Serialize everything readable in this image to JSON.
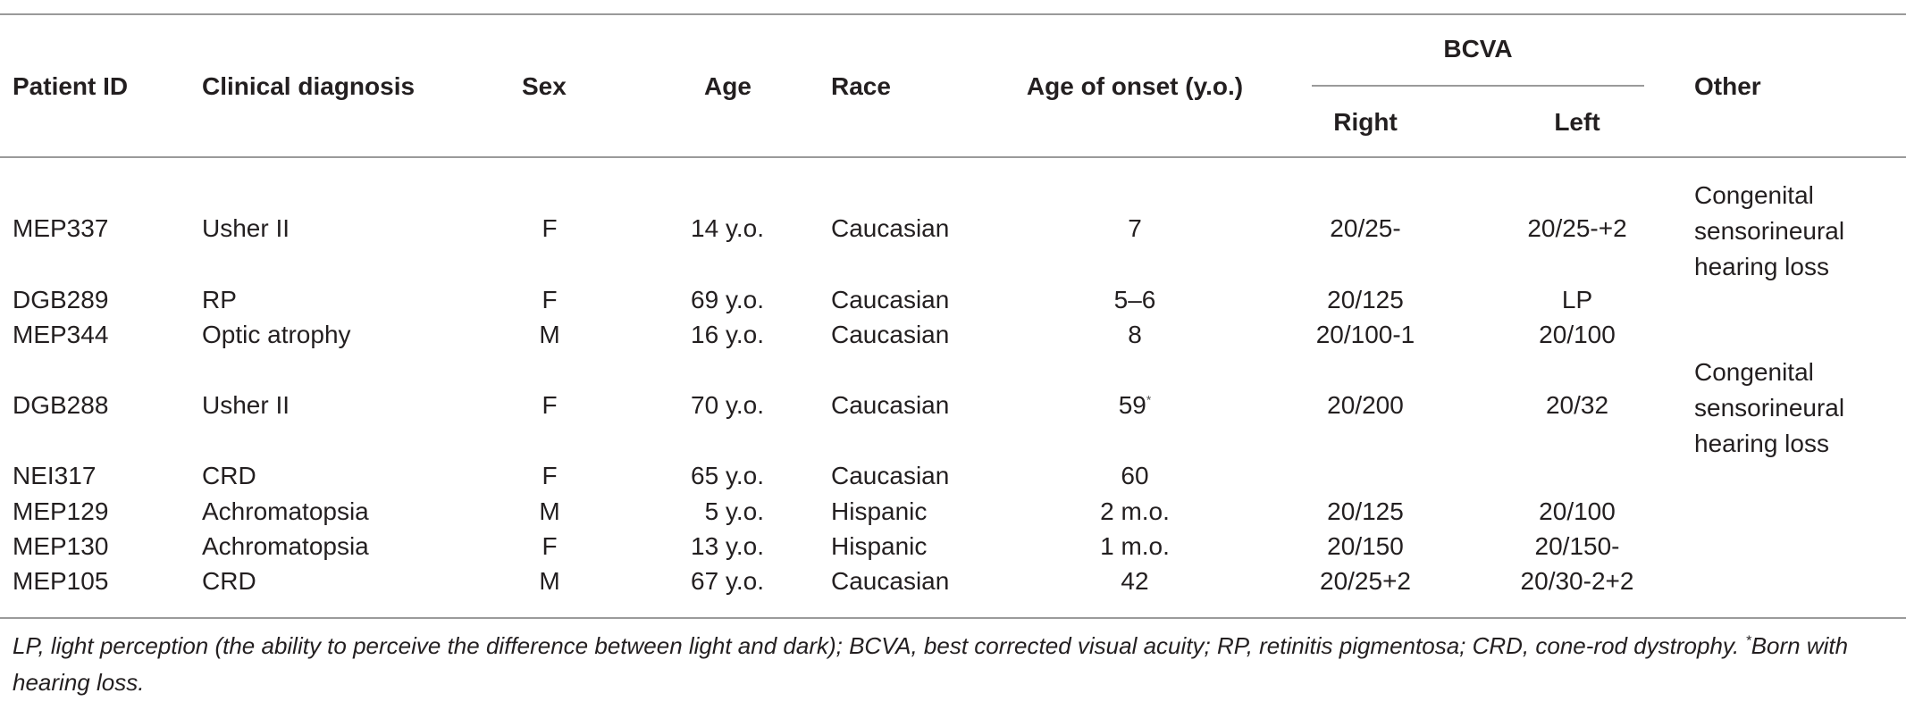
{
  "table": {
    "headers": {
      "patient_id": "Patient ID",
      "clinical_diagnosis": "Clinical diagnosis",
      "sex": "Sex",
      "age": "Age",
      "race": "Race",
      "age_of_onset": "Age of onset (y.o.)",
      "bcva": "BCVA",
      "right": "Right",
      "left": "Left",
      "other": "Other"
    },
    "rows": [
      {
        "id": "MEP337",
        "diagnosis": "Usher II",
        "sex": "F",
        "age": "14 y.o.",
        "race": "Caucasian",
        "onset": "7",
        "onset_mark": "",
        "right": "20/25-",
        "left": "20/25-+2",
        "other": [
          "Congenital",
          "sensorineural",
          "hearing loss"
        ]
      },
      {
        "id": "DGB289",
        "diagnosis": "RP",
        "sex": "F",
        "age": "69 y.o.",
        "race": "Caucasian",
        "onset": "5–6",
        "onset_mark": "",
        "right": "20/125",
        "left": "LP",
        "other": []
      },
      {
        "id": "MEP344",
        "diagnosis": "Optic atrophy",
        "sex": "M",
        "age": "16 y.o.",
        "race": "Caucasian",
        "onset": "8",
        "onset_mark": "",
        "right": "20/100-1",
        "left": "20/100",
        "other": []
      },
      {
        "id": "DGB288",
        "diagnosis": "Usher II",
        "sex": "F",
        "age": "70 y.o.",
        "race": "Caucasian",
        "onset": "59",
        "onset_mark": "*",
        "right": "20/200",
        "left": "20/32",
        "other": [
          "Congenital",
          "sensorineural",
          "hearing loss"
        ]
      },
      {
        "id": "NEI317",
        "diagnosis": "CRD",
        "sex": "F",
        "age": "65 y.o.",
        "race": "Caucasian",
        "onset": "60",
        "onset_mark": "",
        "right": "",
        "left": "",
        "other": []
      },
      {
        "id": "MEP129",
        "diagnosis": "Achromatopsia",
        "sex": "M",
        "age": "5 y.o.",
        "race": "Hispanic",
        "onset": "2 m.o.",
        "onset_mark": "",
        "right": "20/125",
        "left": "20/100",
        "other": []
      },
      {
        "id": "MEP130",
        "diagnosis": "Achromatopsia",
        "sex": "F",
        "age": "13 y.o.",
        "race": "Hispanic",
        "onset": "1 m.o.",
        "onset_mark": "",
        "right": "20/150",
        "left": "20/150-",
        "other": []
      },
      {
        "id": "MEP105",
        "diagnosis": "CRD",
        "sex": "M",
        "age": "67 y.o.",
        "race": "Caucasian",
        "onset": "42",
        "onset_mark": "",
        "right": "20/25+2",
        "left": "20/30-2+2",
        "other": []
      }
    ]
  },
  "footnote": {
    "text": "LP, light perception (the ability to perceive the difference between light and dark); BCVA, best corrected visual acuity; RP, retinitis pigmentosa; CRD, cone-rod dystrophy. ",
    "mark": "*",
    "mark_text": "Born with hearing loss."
  }
}
